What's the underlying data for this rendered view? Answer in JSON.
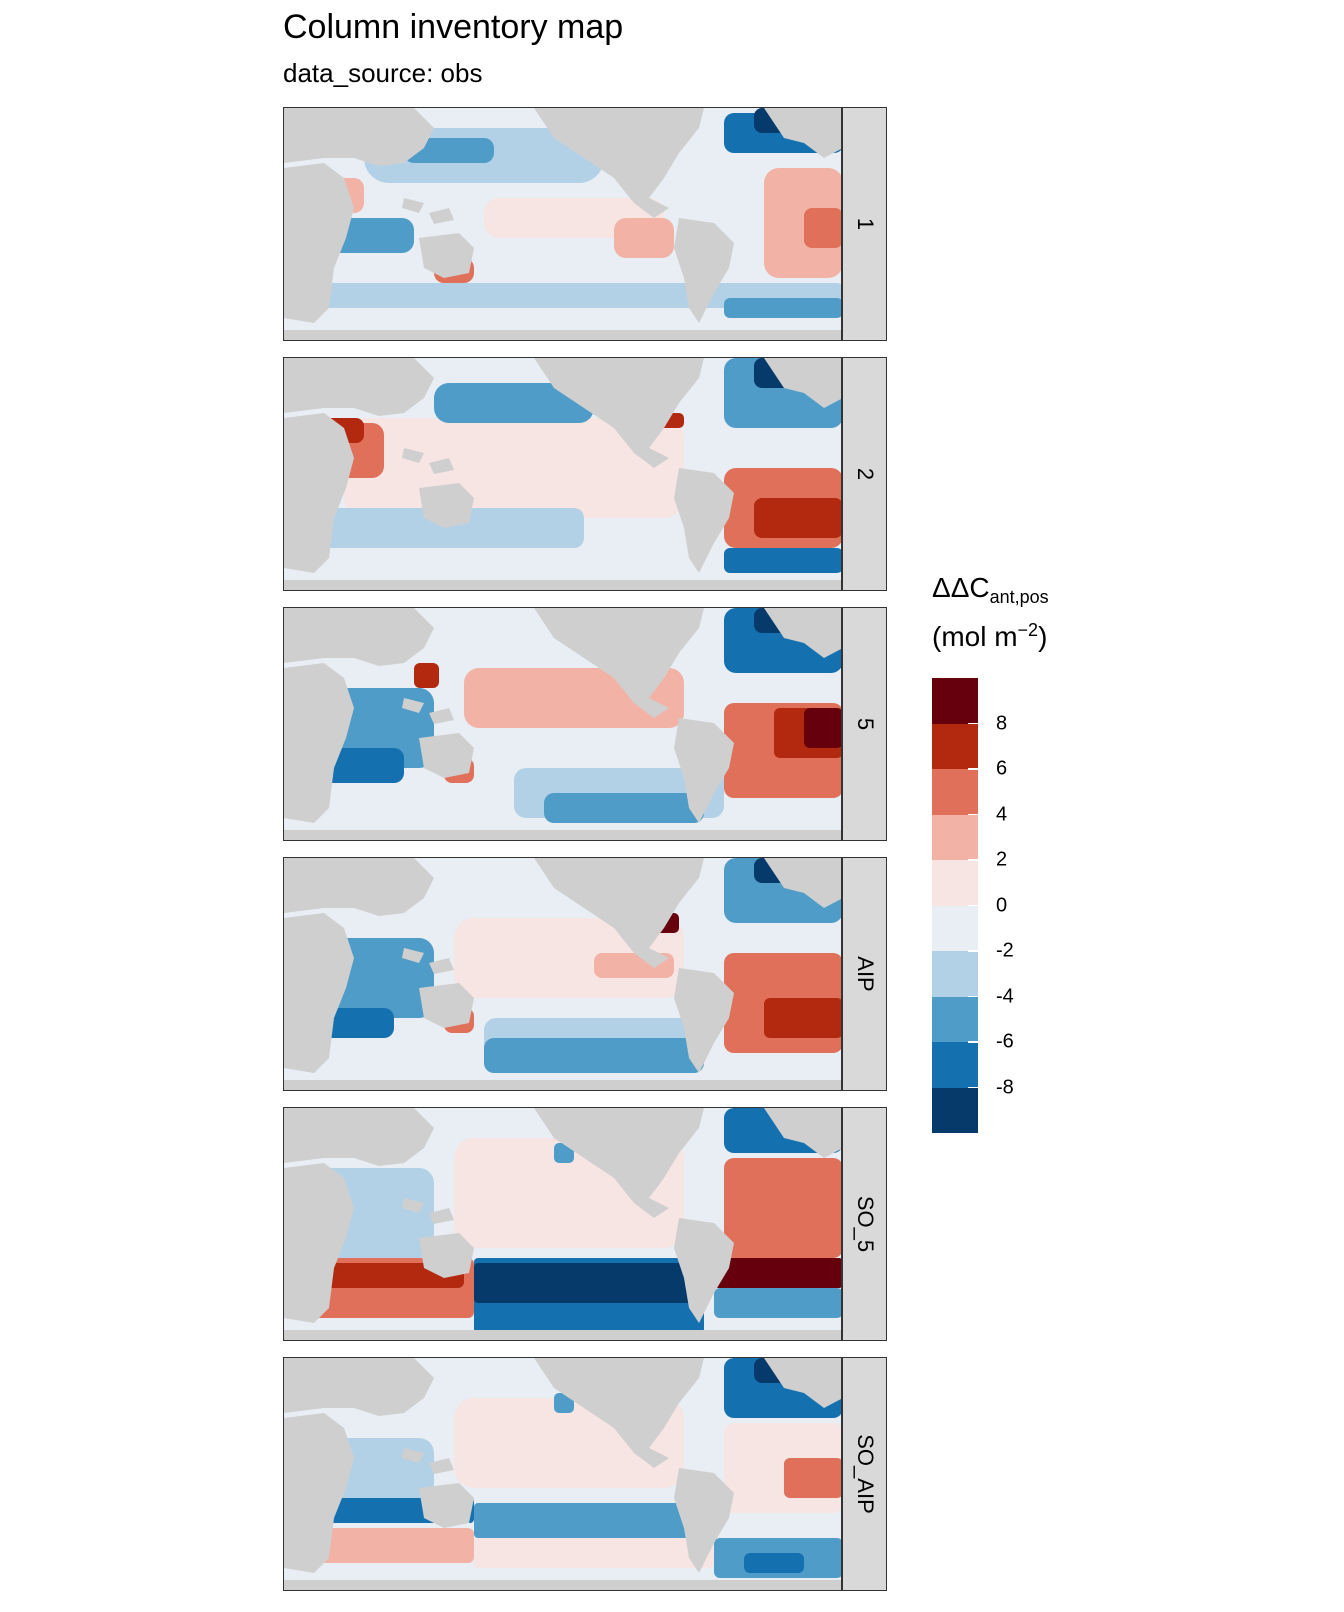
{
  "title": "Column inventory map",
  "subtitle": "data_source: obs",
  "legend": {
    "title_main": "ΔΔC",
    "title_sub": "ant,pos",
    "unit_pre": "(mol m",
    "unit_sup": "−2",
    "unit_post": ")",
    "colors": [
      "#67000d",
      "#b2290f",
      "#e0705a",
      "#f2b3a6",
      "#f7e5e3",
      "#e8eef4",
      "#b3d1e6",
      "#4f9cc8",
      "#1570b0",
      "#053a6b"
    ],
    "labels": [
      "8",
      "6",
      "4",
      "2",
      "0",
      "-2",
      "-4",
      "-6",
      "-8"
    ],
    "background_color": "#cfcfcf",
    "strip_color": "#d9d9d9"
  },
  "panels": [
    {
      "label": "1",
      "pattern": "p1"
    },
    {
      "label": "2",
      "pattern": "p2"
    },
    {
      "label": "5",
      "pattern": "p5"
    },
    {
      "label": "AIP",
      "pattern": "pAIP"
    },
    {
      "label": "SO_5",
      "pattern": "pSO5"
    },
    {
      "label": "SO_AIP",
      "pattern": "pSOAIP"
    }
  ]
}
